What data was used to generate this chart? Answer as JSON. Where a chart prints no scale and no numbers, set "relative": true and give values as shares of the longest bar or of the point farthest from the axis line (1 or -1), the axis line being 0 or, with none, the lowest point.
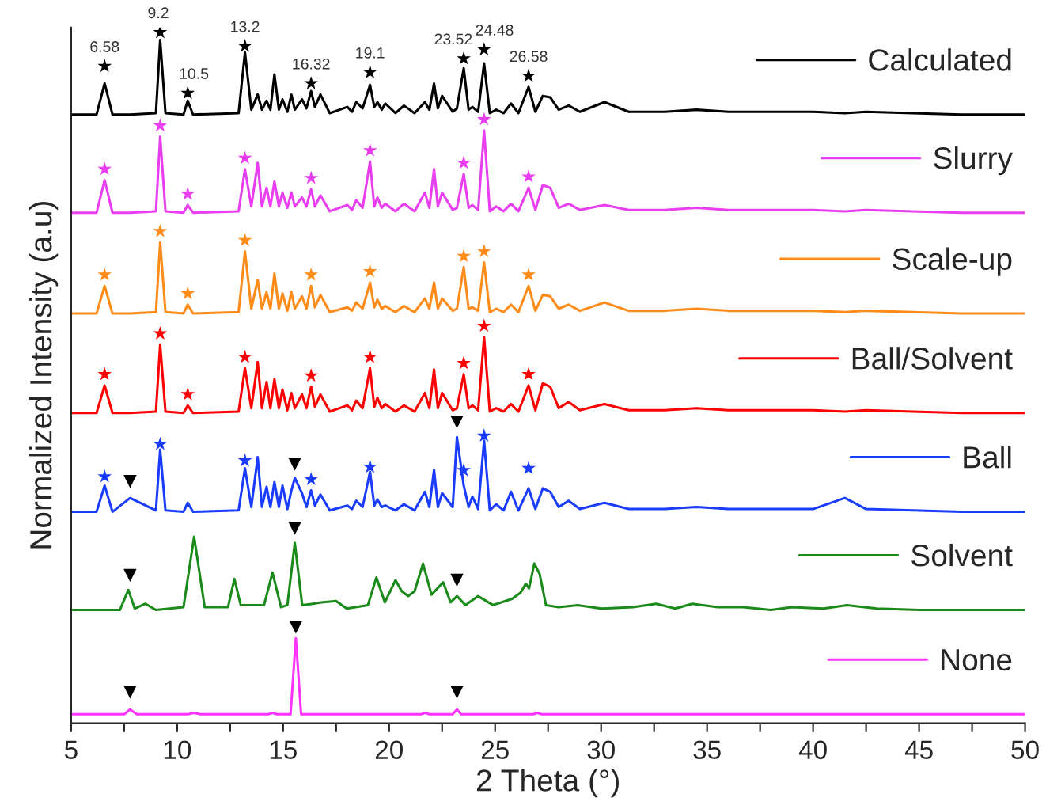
{
  "chart_data": {
    "type": "line",
    "xlabel": "2 Theta (°)",
    "ylabel": "Normalized Intensity (a.u)",
    "relative": true,
    "xlim": [
      5,
      50
    ],
    "xticks": [
      5,
      {
        "value": 7.5,
        "label": null
      },
      10,
      {
        "value": 12.5,
        "label": null
      },
      15,
      {
        "value": 17.5,
        "label": null
      },
      20,
      {
        "value": 22.5,
        "label": null
      },
      25,
      {
        "value": 27.5,
        "label": null
      },
      30,
      {
        "value": 32.5,
        "label": null
      },
      35,
      {
        "value": 37.5,
        "label": null
      },
      40,
      {
        "value": 42.5,
        "label": null
      },
      45,
      {
        "value": 47.5,
        "label": null
      },
      50
    ],
    "tick_labels": "x",
    "legend": "right",
    "series": [
      {
        "name": "Calculated",
        "color": "#000000",
        "x": [
          5,
          6.2,
          6.58,
          6.95,
          7.78,
          9.0,
          9.2,
          9.45,
          10.3,
          10.5,
          10.75,
          12.9,
          13.2,
          13.5,
          13.8,
          14.0,
          14.22,
          14.4,
          14.59,
          14.8,
          14.97,
          15.2,
          15.39,
          15.55,
          15.89,
          16.1,
          16.32,
          16.5,
          16.76,
          17.2,
          18.03,
          18.25,
          18.45,
          18.75,
          19.1,
          19.3,
          19.45,
          19.65,
          19.82,
          20.3,
          20.7,
          21.2,
          21.69,
          21.9,
          22.12,
          22.3,
          22.5,
          23.0,
          23.2,
          23.52,
          23.75,
          23.93,
          24.2,
          24.48,
          24.75,
          25.05,
          25.4,
          25.75,
          26.1,
          26.58,
          26.9,
          27.25,
          27.6,
          28.0,
          28.47,
          29.0,
          30.16,
          31.3,
          33.0,
          34.5,
          36.0,
          38.5,
          40.0,
          41.5,
          42.5,
          44.7,
          47,
          50
        ],
        "values": [
          0.881,
          0.881,
          0.926,
          0.881,
          0.881,
          0.883,
          0.989,
          0.883,
          0.881,
          0.901,
          0.881,
          0.883,
          0.971,
          0.888,
          0.91,
          0.888,
          0.901,
          0.888,
          0.939,
          0.888,
          0.903,
          0.885,
          0.91,
          0.888,
          0.903,
          0.89,
          0.915,
          0.892,
          0.91,
          0.883,
          0.892,
          0.885,
          0.899,
          0.89,
          0.924,
          0.892,
          0.899,
          0.888,
          0.897,
          0.883,
          0.894,
          0.883,
          0.899,
          0.888,
          0.926,
          0.89,
          0.908,
          0.885,
          0.89,
          0.948,
          0.888,
          0.892,
          0.885,
          0.955,
          0.883,
          0.888,
          0.883,
          0.897,
          0.883,
          0.921,
          0.885,
          0.908,
          0.906,
          0.888,
          0.894,
          0.885,
          0.899,
          0.885,
          0.885,
          0.888,
          0.885,
          0.885,
          0.885,
          0.883,
          0.885,
          0.883,
          0.881,
          0.881
        ]
      },
      {
        "name": "Slurry",
        "color": "#e83ef0",
        "x": [
          5,
          6.2,
          6.58,
          6.95,
          7.78,
          9.0,
          9.2,
          9.45,
          10.3,
          10.5,
          10.75,
          12.9,
          13.2,
          13.5,
          13.8,
          14.0,
          14.22,
          14.4,
          14.59,
          14.8,
          14.97,
          15.2,
          15.39,
          15.55,
          15.89,
          16.1,
          16.32,
          16.5,
          16.76,
          17.2,
          18.03,
          18.25,
          18.45,
          18.75,
          19.1,
          19.3,
          19.45,
          19.65,
          19.82,
          20.3,
          20.7,
          21.2,
          21.69,
          21.9,
          22.12,
          22.3,
          22.5,
          23.0,
          23.2,
          23.52,
          23.75,
          23.93,
          24.2,
          24.48,
          24.75,
          25.05,
          25.4,
          25.75,
          26.1,
          26.58,
          26.9,
          27.25,
          27.6,
          28.0,
          28.47,
          29.0,
          30.16,
          31.3,
          33.0,
          34.5,
          36.0,
          38.5,
          40.0,
          41.5,
          42.5,
          44.7,
          47,
          50
        ],
        "values": [
          0.739,
          0.739,
          0.786,
          0.739,
          0.739,
          0.741,
          0.849,
          0.741,
          0.739,
          0.75,
          0.739,
          0.741,
          0.802,
          0.748,
          0.811,
          0.748,
          0.775,
          0.748,
          0.784,
          0.748,
          0.768,
          0.746,
          0.768,
          0.748,
          0.761,
          0.748,
          0.773,
          0.748,
          0.764,
          0.741,
          0.75,
          0.743,
          0.757,
          0.746,
          0.813,
          0.748,
          0.761,
          0.746,
          0.752,
          0.741,
          0.752,
          0.741,
          0.768,
          0.746,
          0.802,
          0.748,
          0.768,
          0.743,
          0.746,
          0.795,
          0.746,
          0.75,
          0.743,
          0.858,
          0.741,
          0.748,
          0.741,
          0.752,
          0.741,
          0.775,
          0.743,
          0.779,
          0.775,
          0.746,
          0.752,
          0.743,
          0.75,
          0.743,
          0.743,
          0.746,
          0.743,
          0.743,
          0.743,
          0.741,
          0.743,
          0.741,
          0.739,
          0.739
        ]
      },
      {
        "name": "Scale-up",
        "color": "#ff8c1a",
        "x": [
          5,
          6.2,
          6.58,
          6.95,
          7.78,
          9.0,
          9.2,
          9.45,
          10.3,
          10.5,
          10.75,
          12.9,
          13.2,
          13.5,
          13.8,
          14.0,
          14.22,
          14.4,
          14.59,
          14.8,
          14.97,
          15.2,
          15.39,
          15.55,
          15.89,
          16.1,
          16.32,
          16.5,
          16.76,
          17.2,
          18.03,
          18.25,
          18.45,
          18.75,
          19.1,
          19.3,
          19.45,
          19.65,
          19.82,
          20.3,
          20.7,
          21.2,
          21.69,
          21.9,
          22.12,
          22.3,
          22.5,
          23.0,
          23.2,
          23.52,
          23.75,
          23.93,
          24.2,
          24.48,
          24.75,
          25.05,
          25.4,
          25.75,
          26.1,
          26.58,
          26.9,
          27.25,
          27.6,
          28.0,
          28.47,
          29.0,
          30.16,
          31.3,
          33.0,
          34.5,
          36.0,
          38.5,
          40.0,
          41.5,
          42.5,
          44.7,
          47,
          50
        ],
        "values": [
          0.593,
          0.593,
          0.633,
          0.593,
          0.593,
          0.595,
          0.696,
          0.595,
          0.593,
          0.606,
          0.593,
          0.595,
          0.683,
          0.6,
          0.642,
          0.6,
          0.624,
          0.6,
          0.651,
          0.6,
          0.622,
          0.597,
          0.624,
          0.6,
          0.618,
          0.6,
          0.633,
          0.602,
          0.62,
          0.595,
          0.602,
          0.597,
          0.609,
          0.6,
          0.638,
          0.602,
          0.613,
          0.6,
          0.604,
          0.595,
          0.604,
          0.595,
          0.615,
          0.6,
          0.638,
          0.6,
          0.615,
          0.597,
          0.6,
          0.66,
          0.6,
          0.602,
          0.597,
          0.667,
          0.595,
          0.6,
          0.595,
          0.606,
          0.595,
          0.633,
          0.597,
          0.62,
          0.618,
          0.6,
          0.606,
          0.597,
          0.609,
          0.597,
          0.597,
          0.6,
          0.597,
          0.597,
          0.597,
          0.595,
          0.597,
          0.595,
          0.593,
          0.593
        ]
      },
      {
        "name": "Ball/Solvent",
        "color": "#ff0000",
        "x": [
          5,
          6.2,
          6.58,
          6.95,
          7.78,
          9.0,
          9.2,
          9.45,
          10.3,
          10.5,
          10.75,
          12.9,
          13.2,
          13.5,
          13.8,
          14.0,
          14.22,
          14.4,
          14.59,
          14.8,
          14.97,
          15.2,
          15.39,
          15.55,
          15.89,
          16.1,
          16.32,
          16.5,
          16.76,
          17.2,
          18.03,
          18.25,
          18.45,
          18.75,
          19.1,
          19.3,
          19.45,
          19.65,
          19.82,
          20.3,
          20.7,
          21.2,
          21.69,
          21.9,
          22.12,
          22.3,
          22.5,
          23.0,
          23.2,
          23.52,
          23.75,
          23.93,
          24.2,
          24.48,
          24.75,
          25.05,
          25.4,
          25.75,
          26.1,
          26.58,
          26.9,
          27.25,
          27.6,
          28.0,
          28.47,
          29.0,
          30.16,
          31.3,
          33.0,
          34.5,
          36.0,
          38.5,
          40.0,
          41.5,
          42.5,
          44.7,
          47,
          50
        ],
        "values": [
          0.449,
          0.449,
          0.489,
          0.449,
          0.449,
          0.451,
          0.548,
          0.451,
          0.449,
          0.46,
          0.449,
          0.451,
          0.514,
          0.456,
          0.523,
          0.456,
          0.494,
          0.456,
          0.498,
          0.456,
          0.483,
          0.453,
          0.478,
          0.456,
          0.476,
          0.456,
          0.487,
          0.458,
          0.476,
          0.451,
          0.46,
          0.453,
          0.467,
          0.456,
          0.514,
          0.458,
          0.471,
          0.456,
          0.462,
          0.451,
          0.46,
          0.451,
          0.478,
          0.456,
          0.512,
          0.456,
          0.478,
          0.453,
          0.456,
          0.505,
          0.456,
          0.46,
          0.453,
          0.559,
          0.451,
          0.456,
          0.451,
          0.462,
          0.451,
          0.489,
          0.453,
          0.492,
          0.487,
          0.456,
          0.465,
          0.453,
          0.462,
          0.453,
          0.453,
          0.456,
          0.453,
          0.453,
          0.453,
          0.451,
          0.453,
          0.451,
          0.449,
          0.449
        ]
      },
      {
        "name": "Ball",
        "color": "#1a3cff",
        "x": [
          5,
          6.2,
          6.58,
          6.95,
          7.78,
          9.0,
          9.2,
          9.45,
          10.3,
          10.5,
          10.75,
          12.9,
          13.2,
          13.5,
          13.8,
          14.0,
          14.22,
          14.4,
          14.59,
          14.8,
          14.97,
          15.2,
          15.39,
          15.55,
          15.89,
          16.1,
          16.32,
          16.5,
          16.76,
          17.2,
          18.03,
          18.25,
          18.45,
          18.75,
          19.1,
          19.3,
          19.45,
          19.65,
          19.82,
          20.3,
          20.7,
          21.2,
          21.69,
          21.9,
          22.12,
          22.3,
          22.5,
          23.0,
          23.2,
          23.52,
          23.75,
          23.93,
          24.2,
          24.48,
          24.75,
          25.05,
          25.4,
          25.75,
          26.1,
          26.58,
          26.9,
          27.25,
          27.6,
          28.0,
          28.47,
          29.0,
          30.16,
          31.3,
          33.0,
          34.5,
          36.0,
          38.5,
          40.0,
          41.5,
          42.5,
          44.7,
          47,
          50
        ],
        "values": [
          0.306,
          0.306,
          0.344,
          0.306,
          0.326,
          0.308,
          0.396,
          0.308,
          0.306,
          0.319,
          0.306,
          0.308,
          0.369,
          0.313,
          0.385,
          0.313,
          0.342,
          0.313,
          0.349,
          0.313,
          0.344,
          0.31,
          0.337,
          0.355,
          0.333,
          0.313,
          0.337,
          0.315,
          0.331,
          0.308,
          0.315,
          0.31,
          0.322,
          0.313,
          0.364,
          0.315,
          0.324,
          0.313,
          0.315,
          0.308,
          0.317,
          0.308,
          0.335,
          0.313,
          0.367,
          0.313,
          0.333,
          0.313,
          0.414,
          0.344,
          0.313,
          0.328,
          0.31,
          0.409,
          0.308,
          0.317,
          0.308,
          0.335,
          0.308,
          0.34,
          0.31,
          0.34,
          0.335,
          0.313,
          0.322,
          0.31,
          0.319,
          0.31,
          0.31,
          0.313,
          0.31,
          0.31,
          0.31,
          0.326,
          0.31,
          0.308,
          0.306,
          0.306
        ]
      },
      {
        "name": "Solvent",
        "color": "#1a8a1a",
        "x": [
          5,
          7.3,
          7.7,
          8.0,
          8.5,
          9.0,
          10.3,
          10.8,
          11.3,
          12.4,
          12.7,
          13.0,
          14.1,
          14.5,
          14.9,
          15.2,
          15.55,
          15.9,
          16.4,
          16.8,
          17.5,
          18.0,
          19.0,
          19.4,
          19.8,
          20.3,
          20.6,
          20.9,
          21.2,
          21.6,
          22.0,
          22.55,
          22.9,
          23.2,
          23.6,
          24.2,
          24.9,
          25.8,
          26.2,
          26.45,
          26.6,
          26.85,
          27.1,
          27.4,
          28.0,
          28.9,
          30.0,
          31.5,
          32.6,
          33.5,
          34.3,
          35.5,
          36.7,
          38.0,
          39.0,
          40.5,
          41.6,
          43.0,
          45.0,
          47.5,
          50
        ],
        "values": [
          0.164,
          0.164,
          0.193,
          0.166,
          0.173,
          0.164,
          0.168,
          0.27,
          0.168,
          0.168,
          0.209,
          0.171,
          0.171,
          0.218,
          0.168,
          0.171,
          0.261,
          0.171,
          0.173,
          0.175,
          0.177,
          0.166,
          0.171,
          0.211,
          0.175,
          0.207,
          0.191,
          0.184,
          0.191,
          0.231,
          0.186,
          0.204,
          0.175,
          0.184,
          0.171,
          0.184,
          0.171,
          0.18,
          0.189,
          0.202,
          0.195,
          0.231,
          0.216,
          0.171,
          0.168,
          0.171,
          0.166,
          0.168,
          0.173,
          0.166,
          0.173,
          0.168,
          0.168,
          0.164,
          0.168,
          0.166,
          0.171,
          0.166,
          0.164,
          0.164,
          0.164
        ]
      },
      {
        "name": "None",
        "color": "#ff33ff",
        "x": [
          5,
          7.5,
          7.78,
          8.1,
          10.5,
          10.8,
          11.1,
          14.3,
          14.5,
          14.7,
          15.35,
          15.6,
          15.85,
          21.5,
          21.7,
          21.9,
          23.0,
          23.2,
          23.4,
          26.8,
          27.0,
          27.2,
          50
        ],
        "values": [
          0.013,
          0.013,
          0.02,
          0.013,
          0.013,
          0.015,
          0.013,
          0.013,
          0.015,
          0.013,
          0.013,
          0.123,
          0.013,
          0.013,
          0.015,
          0.013,
          0.013,
          0.02,
          0.013,
          0.013,
          0.015,
          0.013,
          0.013
        ]
      },
      {
        "type": "scatter",
        "marker": "star",
        "color": "#000000",
        "x": [
          6.58,
          9.2,
          10.5,
          13.2,
          16.32,
          19.1,
          23.52,
          24.48,
          26.58
        ],
        "values": [
          0.951,
          1.0,
          0.912,
          0.98,
          0.926,
          0.942,
          0.962,
          0.975,
          0.937
        ]
      },
      {
        "type": "scatter",
        "marker": "star",
        "color": "#e83ef0",
        "x": [
          6.58,
          9.2,
          10.5,
          13.2,
          16.32,
          19.1,
          23.52,
          24.48,
          26.58
        ],
        "values": [
          0.802,
          0.865,
          0.766,
          0.818,
          0.789,
          0.829,
          0.811,
          0.874,
          0.791
        ]
      },
      {
        "type": "scatter",
        "marker": "star",
        "color": "#ff8c1a",
        "x": [
          6.58,
          9.2,
          10.5,
          13.2,
          16.32,
          19.1,
          23.52,
          24.48,
          26.58
        ],
        "values": [
          0.649,
          0.712,
          0.622,
          0.699,
          0.649,
          0.654,
          0.676,
          0.683,
          0.649
        ]
      },
      {
        "type": "scatter",
        "marker": "star",
        "color": "#ff0000",
        "x": [
          6.58,
          9.2,
          10.5,
          13.2,
          16.32,
          19.1,
          23.52,
          24.48,
          26.58
        ],
        "values": [
          0.505,
          0.564,
          0.476,
          0.53,
          0.503,
          0.53,
          0.521,
          0.575,
          0.505
        ]
      },
      {
        "type": "scatter",
        "marker": "star",
        "color": "#1a3cff",
        "x": [
          6.58,
          9.2,
          13.2,
          16.32,
          19.1,
          23.52,
          24.48,
          26.58
        ],
        "values": [
          0.357,
          0.404,
          0.38,
          0.353,
          0.371,
          0.366,
          0.416,
          0.369
        ]
      },
      {
        "type": "scatter",
        "marker": "triangle",
        "color": "#000000",
        "x": [
          7.78,
          15.55,
          23.2,
          7.78,
          15.55,
          23.2,
          7.78,
          15.6,
          23.2
        ],
        "values": [
          0.35,
          0.375,
          0.436,
          0.214,
          0.282,
          0.207,
          0.045,
          0.139,
          0.045
        ]
      }
    ],
    "annotations": [
      {
        "text": "6.58",
        "x": 6.58,
        "y": 0.951
      },
      {
        "text": "9.2",
        "x": 9.2,
        "y": 1.0
      },
      {
        "text": "10.5",
        "x": 10.5,
        "y": 0.912
      },
      {
        "text": "13.2",
        "x": 13.2,
        "y": 0.98
      },
      {
        "text": "16.32",
        "x": 16.32,
        "y": 0.926
      },
      {
        "text": "19.1",
        "x": 19.1,
        "y": 0.942
      },
      {
        "text": "23.52",
        "x": 23.52,
        "y": 0.962
      },
      {
        "text": "24.48",
        "x": 24.48,
        "y": 0.975
      },
      {
        "text": "26.58",
        "x": 26.58,
        "y": 0.937
      }
    ]
  }
}
